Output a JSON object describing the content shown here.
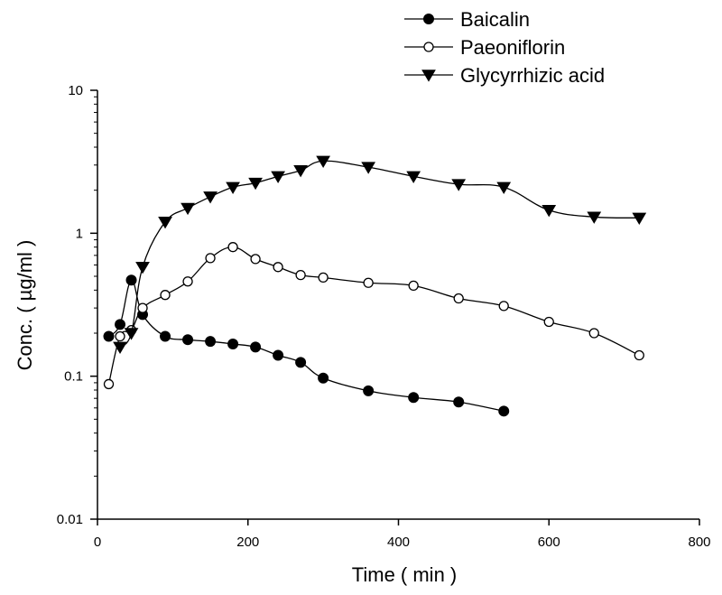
{
  "chart_data": {
    "type": "line",
    "title": "",
    "xlabel": "Time ( min )",
    "ylabel": "Conc. ( µg/ml )",
    "xlim": [
      0,
      800
    ],
    "ylim": [
      0.01,
      10
    ],
    "yscale": "log",
    "x_ticks": [
      0,
      200,
      400,
      600,
      800
    ],
    "x_tick_labels": [
      "0",
      "200",
      "400",
      "600",
      "800"
    ],
    "y_ticks": [
      0.01,
      0.1,
      1,
      10
    ],
    "y_tick_labels": [
      "0.01",
      "0.1",
      "1",
      "10"
    ],
    "grid": false,
    "legend_position": "top-right",
    "series": [
      {
        "name": "Baicalin",
        "marker": "filled-circle",
        "color": "#000000",
        "x": [
          15,
          30,
          45,
          60,
          90,
          120,
          150,
          180,
          210,
          240,
          270,
          300,
          360,
          420,
          480,
          540
        ],
        "y": [
          0.19,
          0.23,
          0.47,
          0.27,
          0.19,
          0.18,
          0.175,
          0.168,
          0.16,
          0.14,
          0.125,
          0.097,
          0.079,
          0.071,
          0.066,
          0.057
        ]
      },
      {
        "name": "Paeoniflorin",
        "marker": "open-circle",
        "color": "#000000",
        "x": [
          15,
          30,
          45,
          60,
          90,
          120,
          150,
          180,
          210,
          240,
          270,
          300,
          360,
          420,
          480,
          540,
          600,
          660,
          720
        ],
        "y": [
          0.088,
          0.19,
          0.21,
          0.3,
          0.37,
          0.46,
          0.67,
          0.8,
          0.66,
          0.58,
          0.51,
          0.49,
          0.45,
          0.43,
          0.35,
          0.31,
          0.24,
          0.2,
          0.14
        ]
      },
      {
        "name": "Glycyrrhizic acid",
        "marker": "filled-triangle-down",
        "color": "#000000",
        "x": [
          30,
          45,
          60,
          90,
          120,
          150,
          180,
          210,
          240,
          270,
          300,
          360,
          420,
          480,
          540,
          600,
          660,
          720
        ],
        "y": [
          0.16,
          0.2,
          0.58,
          1.2,
          1.5,
          1.8,
          2.1,
          2.25,
          2.5,
          2.75,
          3.2,
          2.9,
          2.5,
          2.2,
          2.1,
          1.45,
          1.3,
          1.28
        ]
      }
    ]
  }
}
